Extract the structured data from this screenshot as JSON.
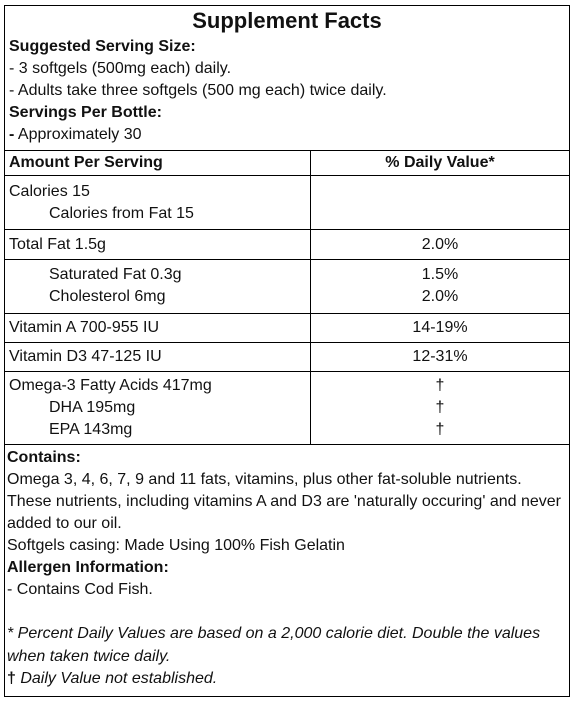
{
  "title": "Supplement Facts",
  "serving": {
    "heading": "Suggested Serving Size:",
    "lines": [
      "- 3 softgels (500mg each) daily.",
      "- Adults take three softgels (500 mg each) twice daily."
    ],
    "servings_heading": "Servings Per Bottle:",
    "servings_dash": "-",
    "servings_value": " Approximately 30"
  },
  "table": {
    "headers": [
      "Amount Per Serving",
      "% Daily Value*"
    ],
    "rows": [
      {
        "names": [
          "Calories 15",
          "Calories from Fat 15"
        ],
        "values": [
          "",
          ""
        ]
      },
      {
        "names": [
          "Total Fat 1.5g"
        ],
        "values": [
          "2.0%"
        ]
      },
      {
        "names": [
          "Saturated Fat 0.3g",
          "Cholesterol 6mg"
        ],
        "values": [
          "1.5%",
          "2.0%"
        ]
      },
      {
        "names": [
          "Vitamin A 700-955 IU"
        ],
        "values": [
          "14-19%"
        ]
      },
      {
        "names": [
          "Vitamin D3 47-125 IU"
        ],
        "values": [
          "12-31%"
        ]
      },
      {
        "names": [
          "Omega-3 Fatty Acids 417mg",
          "DHA 195mg",
          "EPA 143mg"
        ],
        "values": [
          "†",
          "†",
          "†"
        ]
      }
    ]
  },
  "contains": {
    "heading": "Contains:",
    "text": "Omega 3, 4, 6, 7, 9 and 11 fats, vitamins, plus other fat-soluble nutrients. These nutrients, including vitamins A and D3 are 'naturally occuring' and never added to our oil.",
    "casing": "Softgels casing: Made Using 100% Fish Gelatin",
    "allergen_heading": "Allergen Information:",
    "allergen_text": "- Contains Cod Fish."
  },
  "footer": {
    "note1": "* Percent Daily Values are based on a 2,000 calorie diet. Double the values when taken twice daily.",
    "dagger": "†",
    "note2": " Daily Value not established."
  }
}
